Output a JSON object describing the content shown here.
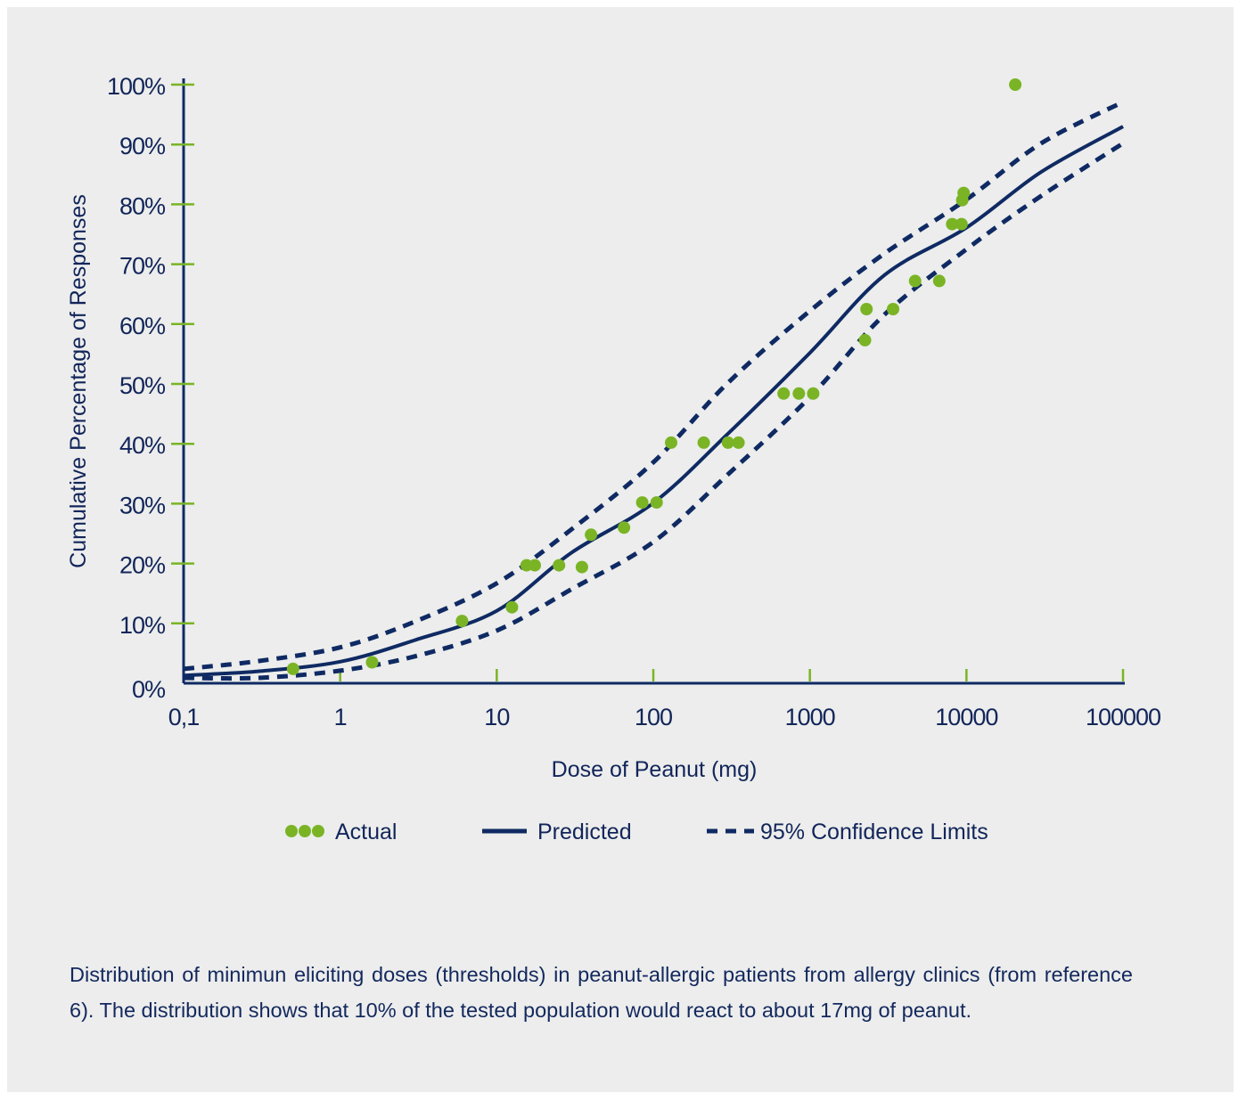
{
  "colors": {
    "background": "#ecedec",
    "navy": "#0f2a63",
    "green": "#7ab425",
    "text": "#12255a"
  },
  "chart_data": {
    "type": "scatter",
    "title": "",
    "xlabel": "Dose of Peanut (mg)",
    "ylabel": "Cumulative Percentage of Responses",
    "x_scale": "log",
    "xlim": [
      0.1,
      100000
    ],
    "ylim": [
      0,
      100
    ],
    "x_ticks": [
      0.1,
      1,
      10,
      100,
      1000,
      10000,
      100000
    ],
    "x_tick_labels": [
      "0,1",
      "1",
      "10",
      "100",
      "1000",
      "10000",
      "100000"
    ],
    "y_ticks": [
      0,
      10,
      20,
      30,
      40,
      50,
      60,
      70,
      80,
      90,
      100
    ],
    "y_tick_labels": [
      "0%",
      "10%",
      "20%",
      "30%",
      "40%",
      "50%",
      "60%",
      "70%",
      "80%",
      "90%",
      "100%"
    ],
    "grid": false,
    "legend_placement": "bottom",
    "series": [
      {
        "name": "Actual",
        "kind": "points",
        "color": "#7ab425",
        "x": [
          0.5,
          1.6,
          6,
          12.5,
          15.5,
          17.5,
          25,
          35,
          40,
          65,
          85,
          105,
          130,
          210,
          300,
          350,
          680,
          850,
          1050,
          2250,
          2300,
          3400,
          4700,
          6700,
          8100,
          9300,
          9400,
          9600,
          20500
        ],
        "y": [
          2.4,
          3.5,
          10.4,
          12.7,
          19.7,
          19.7,
          19.7,
          19.4,
          24.8,
          26.0,
          30.2,
          30.2,
          40.2,
          40.2,
          40.2,
          40.2,
          48.4,
          48.4,
          48.4,
          57.3,
          62.5,
          62.5,
          67.2,
          67.2,
          76.7,
          76.7,
          80.7,
          81.9,
          100
        ]
      },
      {
        "name": "Predicted",
        "kind": "solid",
        "color": "#0f2a63",
        "x": [
          0.1,
          0.3,
          1,
          3,
          10,
          30,
          100,
          300,
          1000,
          3000,
          10000,
          30000,
          100000
        ],
        "y": [
          1.3,
          2.0,
          3.6,
          7.2,
          12.1,
          21.8,
          30.1,
          41.7,
          55.2,
          68.2,
          76.1,
          85.4,
          93.0
        ]
      },
      {
        "name": "95% Confidence Limits",
        "kind": "dashed",
        "color": "#0f2a63",
        "x": [
          0.1,
          0.3,
          1,
          3,
          10,
          30,
          100,
          300,
          1000,
          3000,
          10000,
          30000,
          100000
        ],
        "y": [
          2.4,
          3.7,
          6.0,
          10.3,
          16.7,
          25.7,
          36.9,
          50.2,
          62.2,
          71.8,
          80.8,
          90.2,
          97.1
        ]
      },
      {
        "name": "95% Confidence Limits",
        "kind": "dashed",
        "color": "#0f2a63",
        "x": [
          0.1,
          0.3,
          1,
          3,
          10,
          30,
          100,
          300,
          1000,
          3000,
          10000,
          30000,
          100000
        ],
        "y": [
          0.9,
          0.9,
          2.1,
          4.5,
          8.8,
          15.7,
          23.6,
          34.9,
          47.8,
          61.6,
          72.5,
          81.4,
          90.2
        ]
      }
    ]
  },
  "legend": {
    "actual": "Actual",
    "predicted": "Predicted",
    "confidence": "95% Confidence Limits"
  },
  "caption": "Distribution of minimun eliciting doses (thresholds) in peanut-allergic patients from allergy clinics (from reference 6). The distribution shows that 10% of the tested population would react to about 17mg of peanut."
}
